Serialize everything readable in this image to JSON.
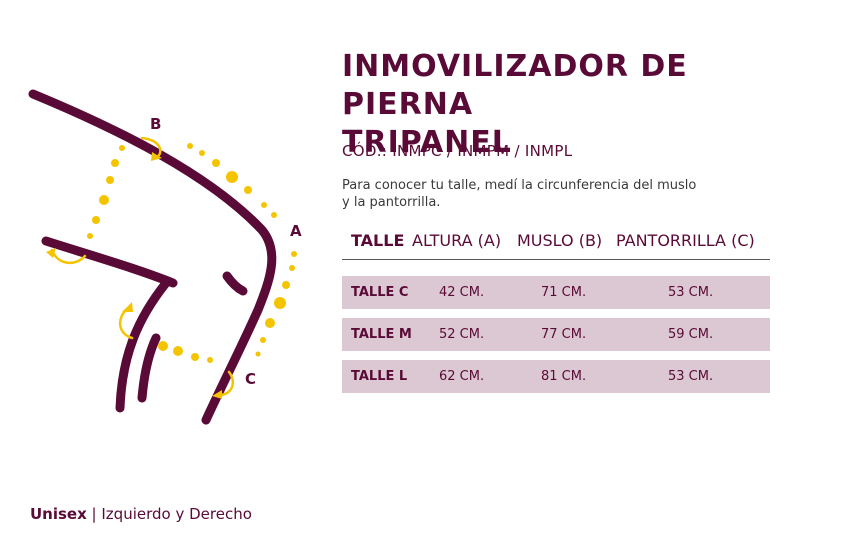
{
  "product": {
    "title_line1": "INMOVILIZADOR DE PIERNA",
    "title_line2": "TRIPANEL",
    "code": "CÓD.: INMPC / INMPM / INMPL",
    "description_line1": "Para conocer tu talle, medí la circunferencia del muslo",
    "description_line2": "y la pantorrilla."
  },
  "diagram": {
    "label_a": "A",
    "label_b": "B",
    "label_c": "C",
    "leg_color": "#5a0a36",
    "measure_color": "#f5c400"
  },
  "size_table": {
    "headers": [
      "TALLE",
      "ALTURA (A)",
      "MUSLO (B)",
      "PANTORRILLA (C)"
    ],
    "rows": [
      {
        "size": "TALLE C",
        "altura": "42 CM.",
        "muslo": "71 CM.",
        "pantorrilla": "53 CM."
      },
      {
        "size": "TALLE M",
        "altura": "52 CM.",
        "muslo": "77 CM.",
        "pantorrilla": "59 CM."
      },
      {
        "size": "TALLE L",
        "altura": "62 CM.",
        "muslo": "81 CM.",
        "pantorrilla": "53 CM."
      }
    ],
    "row_bg": "#dcc8d3"
  },
  "footer": {
    "gender": "Unisex",
    "separator": " | ",
    "side": "Izquierdo y Derecho"
  }
}
